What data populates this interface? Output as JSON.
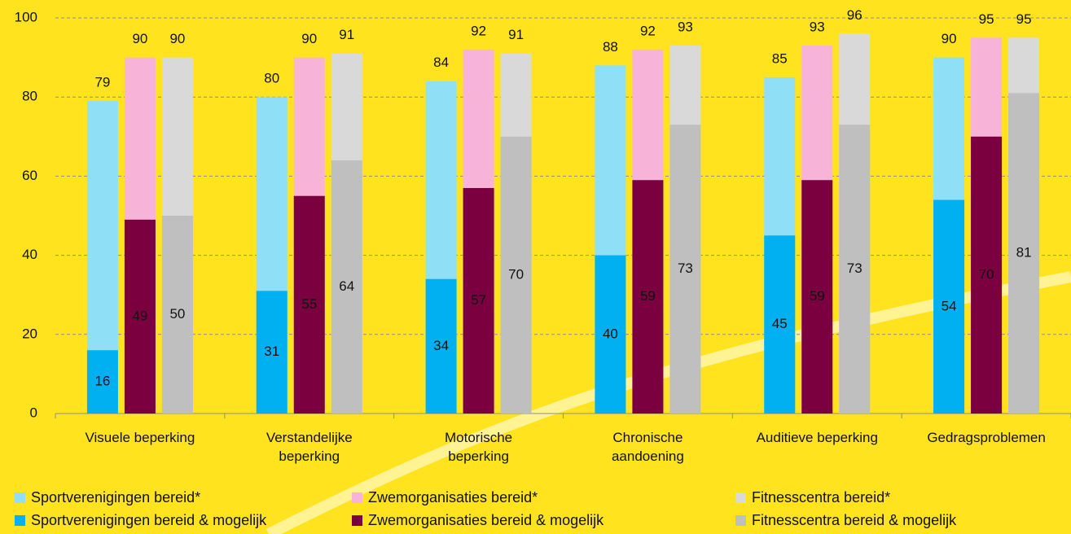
{
  "chart_data": {
    "type": "bar",
    "categories": [
      "Visuele beperking",
      "Verstandelijke\nbeperking",
      "Motorische\nbeperking",
      "Chronische\naandoening",
      "Auditieve beperking",
      "Gedragsproblemen"
    ],
    "series": [
      {
        "name": "Sportverenigingen bereid*",
        "color": "#8fdff7",
        "values": [
          79,
          80,
          84,
          88,
          85,
          90
        ]
      },
      {
        "name": "Zwemorganisaties bereid*",
        "color": "#f8b4d8",
        "values": [
          90,
          90,
          92,
          92,
          93,
          95
        ]
      },
      {
        "name": "Fitnesscentra bereid*",
        "color": "#d9d9d9",
        "values": [
          90,
          91,
          91,
          93,
          96,
          95
        ]
      },
      {
        "name": "Sportverenigingen bereid & mogelijk",
        "color": "#00b0f0",
        "values": [
          16,
          31,
          34,
          40,
          45,
          54
        ]
      },
      {
        "name": "Zwemorganisaties bereid & mogelijk",
        "color": "#7a0040",
        "values": [
          49,
          55,
          57,
          59,
          59,
          70
        ]
      },
      {
        "name": "Fitnesscentra bereid & mogelijk",
        "color": "#bfbfbf",
        "values": [
          50,
          64,
          70,
          73,
          73,
          81
        ]
      }
    ],
    "ylim": [
      0,
      100
    ],
    "yticks": [
      0,
      20,
      40,
      60,
      80,
      100
    ],
    "grid": true
  }
}
